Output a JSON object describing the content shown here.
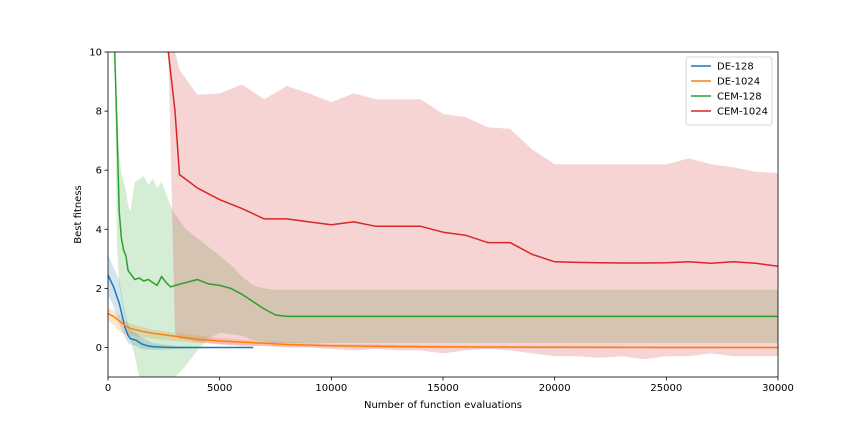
{
  "chart_data": {
    "type": "line",
    "title": "",
    "xlabel": "Number of function evaluations",
    "ylabel": "Best fitness",
    "xlim": [
      0,
      30000
    ],
    "ylim": [
      -1,
      10
    ],
    "xticks": [
      0,
      5000,
      10000,
      15000,
      20000,
      25000,
      30000
    ],
    "yticks": [
      0,
      2,
      4,
      6,
      8,
      10
    ],
    "grid": false,
    "legend_position": "top-right",
    "series": [
      {
        "name": "DE-128",
        "color": "#1f77b4",
        "x": [
          0,
          250,
          500,
          750,
          900,
          1000,
          1250,
          1500,
          1750,
          2000,
          2500,
          3000,
          4000,
          5000,
          6500
        ],
        "y": [
          2.45,
          2.05,
          1.5,
          0.7,
          0.4,
          0.3,
          0.25,
          0.12,
          0.06,
          0.03,
          0.01,
          0.0,
          0.0,
          0.0,
          0.0
        ],
        "band_upper": [
          3.15,
          2.7,
          2.3,
          1.2,
          0.8,
          0.6,
          0.5,
          0.35,
          0.25,
          0.15,
          0.1,
          0.05,
          0.03,
          0.02,
          0.02
        ],
        "band_lower": [
          1.8,
          1.4,
          0.8,
          0.35,
          0.15,
          0.1,
          0.05,
          -0.05,
          -0.08,
          -0.08,
          -0.08,
          -0.05,
          -0.03,
          -0.02,
          -0.02
        ]
      },
      {
        "name": "DE-1024",
        "color": "#ff7f0e",
        "x": [
          0,
          250,
          500,
          750,
          1000,
          1500,
          2000,
          3000,
          4000,
          5000,
          6000,
          7000,
          8000,
          10000,
          12000,
          15000,
          20000,
          25000,
          30000
        ],
        "y": [
          1.15,
          1.05,
          0.9,
          0.75,
          0.65,
          0.55,
          0.48,
          0.38,
          0.28,
          0.22,
          0.18,
          0.14,
          0.1,
          0.06,
          0.04,
          0.02,
          0.01,
          0.0,
          0.0
        ],
        "band_upper": [
          1.35,
          1.25,
          1.1,
          0.9,
          0.8,
          0.7,
          0.6,
          0.5,
          0.4,
          0.32,
          0.27,
          0.22,
          0.18,
          0.12,
          0.1,
          0.07,
          0.05,
          0.04,
          0.03
        ],
        "band_lower": [
          0.9,
          0.75,
          0.55,
          0.45,
          0.4,
          0.35,
          0.3,
          0.22,
          0.15,
          0.12,
          0.08,
          0.05,
          0.03,
          0.0,
          -0.02,
          -0.03,
          -0.04,
          -0.04,
          -0.04
        ]
      },
      {
        "name": "CEM-128",
        "color": "#2ca02c",
        "x": [
          300,
          400,
          500,
          600,
          700,
          800,
          900,
          1000,
          1200,
          1400,
          1600,
          1800,
          2000,
          2200,
          2400,
          2600,
          2800,
          3000,
          3500,
          4000,
          4500,
          5000,
          5500,
          6000,
          6500,
          7000,
          7500,
          8000,
          9000,
          10000,
          12000,
          14000,
          16000,
          18000,
          20000,
          22000,
          24000,
          26000,
          28000,
          30000
        ],
        "y": [
          10.0,
          7.5,
          4.6,
          3.7,
          3.3,
          3.1,
          2.6,
          2.5,
          2.3,
          2.35,
          2.25,
          2.3,
          2.2,
          2.1,
          2.4,
          2.2,
          2.05,
          2.1,
          2.2,
          2.3,
          2.15,
          2.1,
          2.0,
          1.8,
          1.55,
          1.3,
          1.1,
          1.05,
          1.05,
          1.05,
          1.05,
          1.05,
          1.05,
          1.05,
          1.05,
          1.05,
          1.05,
          1.05,
          1.05,
          1.05
        ],
        "band_upper": [
          10.0,
          8.2,
          6.5,
          5.9,
          5.6,
          5.3,
          4.8,
          4.6,
          5.6,
          5.7,
          5.8,
          5.5,
          5.7,
          5.4,
          5.6,
          5.2,
          4.8,
          4.5,
          4.0,
          3.7,
          3.4,
          3.1,
          2.8,
          2.4,
          2.1,
          2.0,
          1.95,
          1.95,
          1.95,
          1.95,
          1.95,
          1.95,
          1.95,
          1.95,
          1.95,
          1.95,
          1.95,
          1.95,
          1.95,
          1.95
        ],
        "band_lower": [
          10.0,
          3.6,
          2.1,
          1.7,
          1.2,
          0.9,
          0.5,
          0.3,
          -0.3,
          -1.0,
          -1.0,
          -1.0,
          -1.0,
          -1.0,
          -1.0,
          -1.0,
          -1.0,
          -1.0,
          -0.6,
          -0.1,
          0.3,
          0.5,
          0.45,
          0.4,
          0.25,
          0.2,
          0.15,
          0.15,
          0.15,
          0.15,
          0.15,
          0.15,
          0.15,
          0.15,
          0.15,
          0.15,
          0.15,
          0.15,
          0.15,
          0.15
        ]
      },
      {
        "name": "CEM-1024",
        "color": "#d62728",
        "x": [
          2700,
          3000,
          3200,
          4000,
          5000,
          6000,
          7000,
          8000,
          9000,
          10000,
          11000,
          12000,
          13000,
          14000,
          15000,
          16000,
          17000,
          18000,
          19000,
          20000,
          21000,
          22000,
          23000,
          24000,
          25000,
          26000,
          27000,
          28000,
          29000,
          30000
        ],
        "y": [
          10.0,
          8.0,
          5.85,
          5.4,
          5.0,
          4.7,
          4.35,
          4.35,
          4.25,
          4.15,
          4.25,
          4.1,
          4.1,
          4.1,
          3.9,
          3.8,
          3.55,
          3.55,
          3.15,
          2.9,
          2.88,
          2.87,
          2.86,
          2.86,
          2.87,
          2.9,
          2.85,
          2.9,
          2.85,
          2.75
        ],
        "band_upper": [
          10.0,
          10.0,
          9.4,
          8.55,
          8.6,
          8.9,
          8.4,
          8.85,
          8.6,
          8.3,
          8.6,
          8.4,
          8.4,
          8.4,
          7.9,
          7.8,
          7.45,
          7.4,
          6.7,
          6.2,
          6.2,
          6.2,
          6.2,
          6.2,
          6.2,
          6.4,
          6.2,
          6.1,
          5.95,
          5.9
        ],
        "band_lower": [
          10.0,
          0.5,
          0.3,
          0.2,
          0.1,
          0.05,
          0.05,
          0.0,
          0.0,
          -0.05,
          -0.1,
          -0.05,
          -0.1,
          -0.1,
          -0.2,
          -0.1,
          -0.05,
          -0.1,
          -0.2,
          -0.3,
          -0.3,
          -0.35,
          -0.3,
          -0.4,
          -0.3,
          -0.3,
          -0.2,
          -0.3,
          -0.3,
          -0.3
        ]
      }
    ]
  }
}
